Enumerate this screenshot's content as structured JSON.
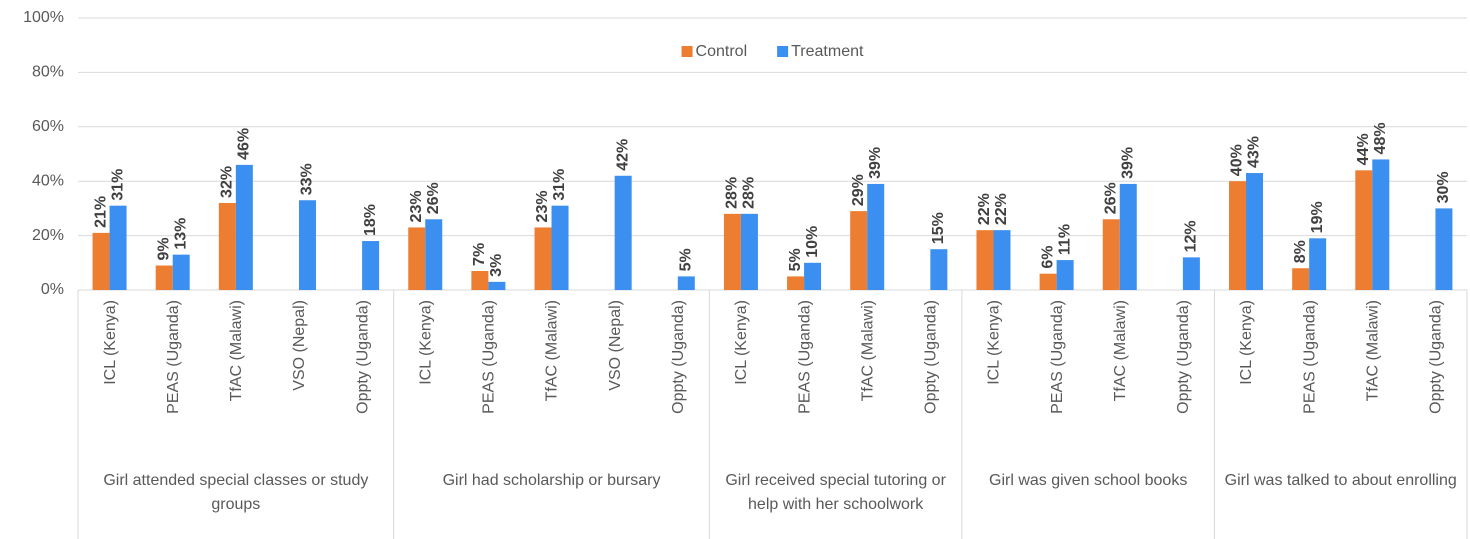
{
  "chart_data": {
    "type": "bar",
    "groups": [
      {
        "label": "Girl attended special classes or study groups",
        "categories": [
          "ICL (Kenya)",
          "PEAS (Uganda)",
          "TfAC (Malawi)",
          "VSO (Nepal)",
          "Oppty (Uganda)"
        ]
      },
      {
        "label": "Girl had scholarship or bursary",
        "categories": [
          "ICL (Kenya)",
          "PEAS (Uganda)",
          "TfAC (Malawi)",
          "VSO (Nepal)",
          "Oppty (Uganda)"
        ]
      },
      {
        "label": "Girl received special tutoring or help with her schoolwork",
        "categories": [
          "ICL (Kenya)",
          "PEAS (Uganda)",
          "TfAC (Malawi)",
          "Oppty (Uganda)"
        ]
      },
      {
        "label": "Girl was given school books",
        "categories": [
          "ICL (Kenya)",
          "PEAS (Uganda)",
          "TfAC (Malawi)",
          "Oppty (Uganda)"
        ]
      },
      {
        "label": "Girl was talked to about enrolling",
        "categories": [
          "ICL (Kenya)",
          "PEAS (Uganda)",
          "TfAC (Malawi)",
          "Oppty (Uganda)"
        ]
      }
    ],
    "series": [
      {
        "name": "Control",
        "color": "#ed7d31",
        "values": [
          21,
          9,
          32,
          null,
          null,
          23,
          7,
          23,
          null,
          null,
          28,
          5,
          29,
          null,
          22,
          6,
          26,
          null,
          40,
          8,
          44,
          null
        ],
        "value_labels": [
          "21%",
          "9%",
          "32%",
          null,
          null,
          "23%",
          "7%",
          "23%",
          null,
          null,
          "28%",
          "5%",
          "29%",
          null,
          "22%",
          "6%",
          "26%",
          null,
          "40%",
          "8%",
          "44%",
          null
        ]
      },
      {
        "name": "Treatment",
        "color": "#3a8ff0",
        "values": [
          31,
          13,
          46,
          33,
          18,
          26,
          3,
          31,
          42,
          5,
          28,
          10,
          39,
          15,
          22,
          11,
          39,
          12,
          43,
          19,
          48,
          30
        ],
        "value_labels": [
          "31%",
          "13%",
          "46%",
          "33%",
          "18%",
          "26%",
          "3%",
          "31%",
          "42%",
          "5%",
          "28%",
          "10%",
          "39%",
          "15%",
          "22%",
          "11%",
          "39%",
          "12%",
          "43%",
          "19%",
          "48%",
          "30%"
        ]
      }
    ],
    "ylim": [
      0,
      100
    ],
    "yticks": [
      {
        "value": 0,
        "label": "0%"
      },
      {
        "value": 20,
        "label": "20%"
      },
      {
        "value": 40,
        "label": "40%"
      },
      {
        "value": 60,
        "label": "60%"
      },
      {
        "value": 80,
        "label": "80%"
      },
      {
        "value": 100,
        "label": "100%"
      }
    ],
    "grid": true,
    "legend": "top"
  }
}
